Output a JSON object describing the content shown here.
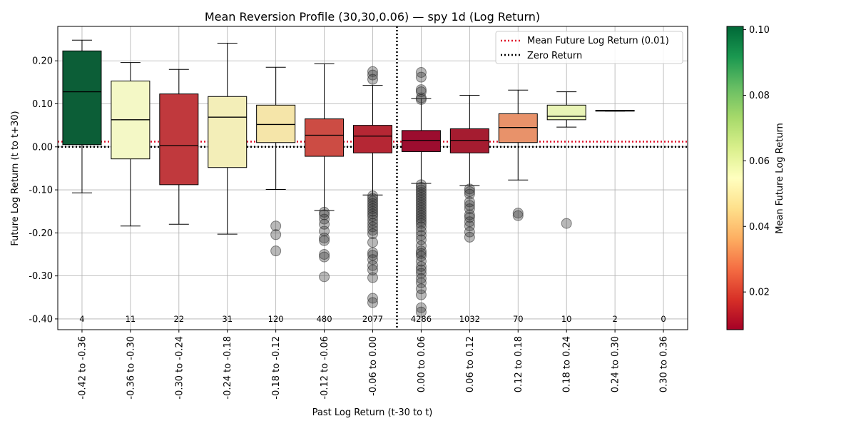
{
  "chart_data": {
    "type": "box",
    "title": "Mean Reversion Profile (30,30,0.06) — spy 1d (Log Return)",
    "xlabel": "Past Log Return (t-30 to t)",
    "ylabel": "Future Log Return (t to t+30)",
    "ylim": [
      -0.425,
      0.28
    ],
    "yticks": [
      -0.4,
      -0.3,
      -0.2,
      -0.1,
      0.0,
      0.1,
      0.2
    ],
    "ytick_labels": [
      "-0.40",
      "-0.30",
      "-0.20",
      "-0.10",
      "0.00",
      "0.10",
      "0.20"
    ],
    "grid": true,
    "legend_position": "top-right",
    "legend": [
      {
        "label": "Mean Future Log Return (0.01)",
        "style": "dotted",
        "color": "#e0102a"
      },
      {
        "label": "Zero Return",
        "style": "dotted",
        "color": "#000000"
      }
    ],
    "mean_line": 0.012,
    "zero_line": 0.0,
    "divider_between_bins": [
      6,
      7
    ],
    "categories": [
      "-0.42 to -0.36",
      "-0.36 to -0.30",
      "-0.30 to -0.24",
      "-0.24 to -0.18",
      "-0.18 to -0.12",
      "-0.12 to -0.06",
      "-0.06 to 0.00",
      "0.00 to 0.06",
      "0.06 to 0.12",
      "0.12 to 0.18",
      "0.18 to 0.24",
      "0.24 to 0.30",
      "0.30 to 0.36"
    ],
    "counts": [
      "4",
      "11",
      "22",
      "31",
      "120",
      "480",
      "2077",
      "4286",
      "1032",
      "70",
      "10",
      "2",
      "0"
    ],
    "boxes": [
      {
        "q1": 0.005,
        "median": 0.128,
        "q3": 0.223,
        "whislo": -0.107,
        "whishi": 0.248,
        "color": "#0c5e37",
        "fliers": []
      },
      {
        "q1": -0.028,
        "median": 0.063,
        "q3": 0.153,
        "whislo": -0.184,
        "whishi": 0.196,
        "color": "#f4f8c6",
        "fliers": []
      },
      {
        "q1": -0.088,
        "median": 0.003,
        "q3": 0.123,
        "whislo": -0.18,
        "whishi": 0.18,
        "color": "#c0393d",
        "fliers": []
      },
      {
        "q1": -0.048,
        "median": 0.069,
        "q3": 0.117,
        "whislo": -0.203,
        "whishi": 0.241,
        "color": "#f3eeb8",
        "fliers": []
      },
      {
        "q1": 0.01,
        "median": 0.052,
        "q3": 0.097,
        "whislo": -0.099,
        "whishi": 0.185,
        "color": "#f5e5a9",
        "fliers": [
          -0.184,
          -0.204,
          -0.242
        ]
      },
      {
        "q1": -0.022,
        "median": 0.027,
        "q3": 0.065,
        "whislo": -0.148,
        "whishi": 0.193,
        "color": "#cc4c44",
        "fliers": [
          -0.152,
          -0.158,
          -0.168,
          -0.18,
          -0.196,
          -0.212,
          -0.218,
          -0.25,
          -0.256,
          -0.302
        ]
      },
      {
        "q1": -0.014,
        "median": 0.025,
        "q3": 0.05,
        "whislo": -0.112,
        "whishi": 0.143,
        "color": "#b52734",
        "fliers": [
          0.175,
          0.167,
          0.157,
          -0.114,
          -0.12,
          -0.126,
          -0.132,
          -0.138,
          -0.144,
          -0.15,
          -0.156,
          -0.162,
          -0.17,
          -0.178,
          -0.186,
          -0.194,
          -0.202,
          -0.222,
          -0.246,
          -0.252,
          -0.262,
          -0.276,
          -0.286,
          -0.304,
          -0.352,
          -0.362
        ]
      },
      {
        "q1": -0.011,
        "median": 0.015,
        "q3": 0.038,
        "whislo": -0.085,
        "whishi": 0.112,
        "color": "#9c0d2f",
        "fliers": [
          0.173,
          0.162,
          0.133,
          0.128,
          0.114,
          0.11,
          -0.088,
          -0.094,
          -0.1,
          -0.106,
          -0.112,
          -0.118,
          -0.124,
          -0.13,
          -0.136,
          -0.142,
          -0.148,
          -0.154,
          -0.16,
          -0.166,
          -0.172,
          -0.178,
          -0.186,
          -0.196,
          -0.206,
          -0.216,
          -0.23,
          -0.242,
          -0.248,
          -0.254,
          -0.266,
          -0.278,
          -0.286,
          -0.294,
          -0.306,
          -0.316,
          -0.33,
          -0.344,
          -0.374,
          -0.384
        ]
      },
      {
        "q1": -0.014,
        "median": 0.015,
        "q3": 0.042,
        "whislo": -0.09,
        "whishi": 0.12,
        "color": "#a51c30",
        "fliers": [
          -0.098,
          -0.104,
          -0.11,
          -0.128,
          -0.136,
          -0.144,
          -0.158,
          -0.164,
          -0.174,
          -0.184,
          -0.198,
          -0.21
        ]
      },
      {
        "q1": 0.01,
        "median": 0.045,
        "q3": 0.077,
        "whislo": -0.077,
        "whishi": 0.132,
        "color": "#e8926a",
        "fliers": [
          -0.154,
          -0.16
        ]
      },
      {
        "q1": 0.063,
        "median": 0.071,
        "q3": 0.097,
        "whislo": 0.046,
        "whishi": 0.128,
        "color": "#e9f4b6",
        "fliers": [
          -0.178
        ]
      },
      {
        "q1": 0.083,
        "median": 0.084,
        "q3": 0.085,
        "whislo": 0.083,
        "whishi": 0.085,
        "color": "#1a7a42",
        "fliers": []
      },
      null
    ],
    "colorbar": {
      "label": "Mean Future Log Return",
      "range": [
        0.0085,
        0.101
      ],
      "ticks": [
        0.02,
        0.04,
        0.06,
        0.08,
        0.1
      ],
      "tick_labels": [
        "0.02",
        "0.04",
        "0.06",
        "0.08",
        "0.10"
      ],
      "colormap": "RdYlGn",
      "stops": [
        "#a50026",
        "#d73027",
        "#f46d43",
        "#fdae61",
        "#fee08b",
        "#ffffbf",
        "#d9ef8b",
        "#a6d96a",
        "#66bd63",
        "#1a9850",
        "#006837"
      ]
    }
  }
}
